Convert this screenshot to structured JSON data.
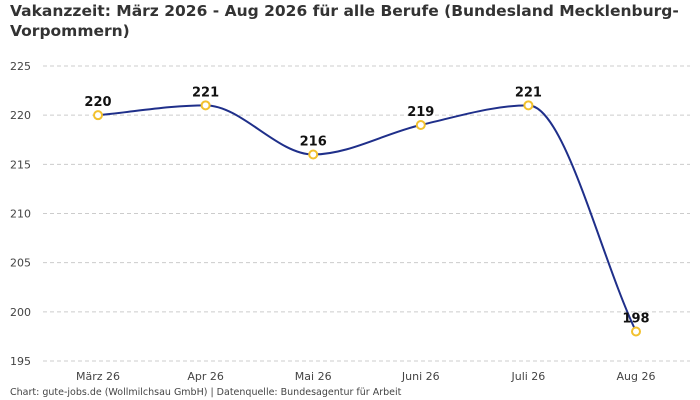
{
  "chart_data": {
    "type": "line",
    "title": "Vakanzzeit: März 2026 - Aug 2026 für alle Berufe (Bundesland Mecklenburg-Vorpommern)",
    "categories": [
      "März 26",
      "Apr 26",
      "Mai 26",
      "Juni 26",
      "Juli 26",
      "Aug 26"
    ],
    "series": [
      {
        "values": [
          220,
          221,
          216,
          219,
          221,
          198
        ]
      }
    ],
    "data_labels": [
      "220",
      "221",
      "216",
      "219",
      "221",
      "198"
    ],
    "y_ticks": [
      195,
      200,
      205,
      210,
      215,
      220,
      225
    ],
    "ylim": [
      195,
      225
    ],
    "xlabel": "",
    "ylabel": "",
    "grid": true,
    "line_color": "#1f2f8a",
    "marker_color": "#f2c12e",
    "grid_color": "#cccccc"
  },
  "footer": "Chart: gute-jobs.de (Wollmilchsau GmbH) | Datenquelle: Bundesagentur für Arbeit"
}
